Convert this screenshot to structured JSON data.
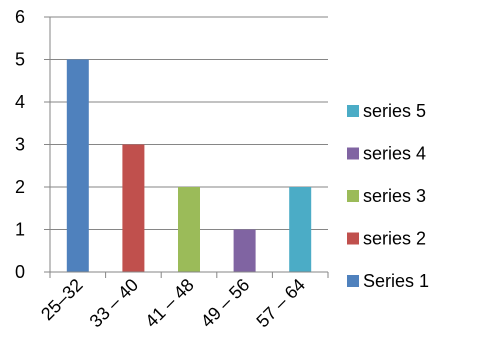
{
  "chart_data": {
    "type": "bar",
    "categories": [
      "25–32",
      "33 – 40",
      "41 – 48",
      "49 – 56",
      "57 – 64"
    ],
    "series": [
      {
        "name": "Series 1",
        "color": "#4F81BD",
        "values": [
          5,
          null,
          null,
          null,
          null
        ]
      },
      {
        "name": "series 2",
        "color": "#C0504D",
        "values": [
          null,
          3,
          null,
          null,
          null
        ]
      },
      {
        "name": "series 3",
        "color": "#9BBB59",
        "values": [
          null,
          null,
          2,
          null,
          null
        ]
      },
      {
        "name": "series 4",
        "color": "#8064A2",
        "values": [
          null,
          null,
          null,
          1,
          null
        ]
      },
      {
        "name": "series 5",
        "color": "#4BACC6",
        "values": [
          null,
          null,
          null,
          null,
          2
        ]
      }
    ],
    "title": "",
    "xlabel": "",
    "ylabel": "",
    "ylim": [
      0,
      6
    ],
    "yticks": [
      "0",
      "1",
      "2",
      "3",
      "4",
      "5",
      "6"
    ],
    "grid": true,
    "legend": [
      "series 5",
      "series 4",
      "series 3",
      "series 2",
      "Series 1"
    ],
    "legend_position": "right"
  }
}
